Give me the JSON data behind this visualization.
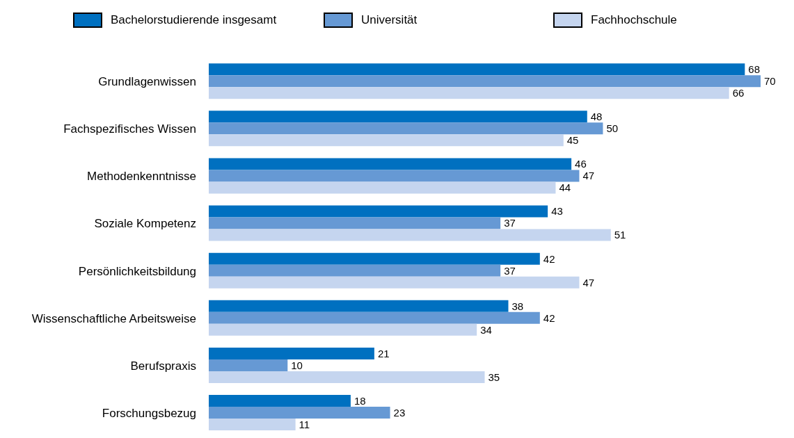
{
  "chart_data": {
    "type": "bar",
    "orientation": "horizontal",
    "legend": "top",
    "data_labels": true,
    "categories": [
      "Grundlagenwissen",
      "Fachspezifisches Wissen",
      "Methodenkenntnisse",
      "Soziale Kompetenz",
      "Persönlichkeitsbildung",
      "Wissenschaftliche Arbeitsweise",
      "Berufspraxis",
      "Forschungsbezug"
    ],
    "series": [
      {
        "name": "Bachelorstudierende insgesamt",
        "color": "#0070c0",
        "values": [
          68,
          48,
          46,
          43,
          42,
          38,
          21,
          18
        ]
      },
      {
        "name": "Universität",
        "color": "#6699d4",
        "values": [
          70,
          50,
          47,
          37,
          37,
          42,
          10,
          23
        ]
      },
      {
        "name": "Fachhochschule",
        "color": "#c5d5ef",
        "values": [
          66,
          45,
          44,
          51,
          47,
          34,
          35,
          11
        ]
      }
    ]
  }
}
